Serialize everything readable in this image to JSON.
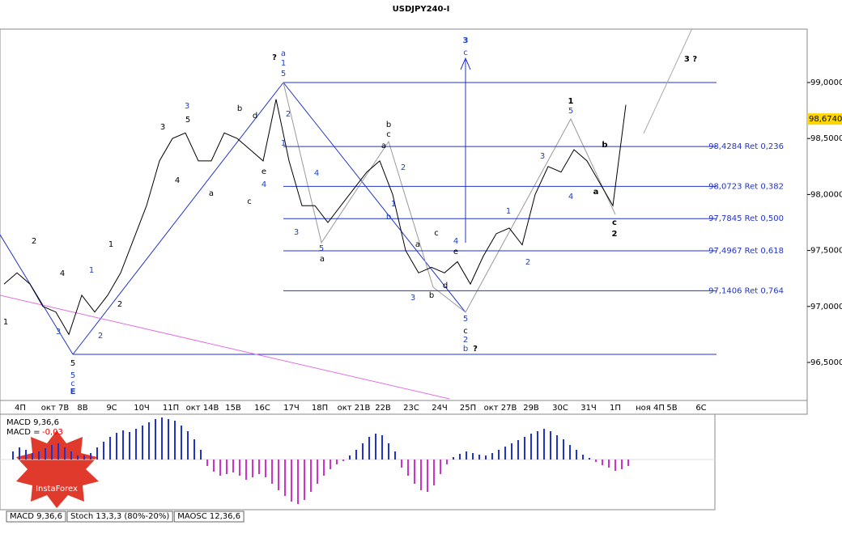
{
  "header": {
    "title": "USDJPY240-I"
  },
  "price_axis": {
    "ticks": [
      {
        "value": 99.0,
        "label": "99,0000"
      },
      {
        "value": 98.5,
        "label": "98,5000"
      },
      {
        "value": 98.0,
        "label": "98,0000"
      },
      {
        "value": 97.5,
        "label": "97,5000"
      },
      {
        "value": 97.0,
        "label": "97,0000"
      },
      {
        "value": 96.5,
        "label": "96,5000"
      }
    ],
    "current": {
      "value": 98.674,
      "label": "98,6740"
    }
  },
  "fib_levels": [
    {
      "value": 98.4284,
      "label": "98,4284 Ret 0,236"
    },
    {
      "value": 98.0723,
      "label": "98,0723 Ret 0,382"
    },
    {
      "value": 97.7845,
      "label": "97,7845 Ret 0,500"
    },
    {
      "value": 97.4967,
      "label": "97,4967 Ret 0,618"
    },
    {
      "value": 97.1406,
      "label": "97,1406 Ret 0,764"
    }
  ],
  "close": [
    97.2,
    97.3,
    97.2,
    97.0,
    96.95,
    96.75,
    97.1,
    96.95,
    97.1,
    97.3,
    97.6,
    97.9,
    98.3,
    98.5,
    98.55,
    98.3,
    98.3,
    98.55,
    98.5,
    98.4,
    98.3,
    98.85,
    98.3,
    97.9,
    97.9,
    97.75,
    97.9,
    98.05,
    98.2,
    98.3,
    98.0,
    97.5,
    97.3,
    97.35,
    97.3,
    97.4,
    97.2,
    97.45,
    97.65,
    97.7,
    97.55,
    98.0,
    98.25,
    98.2,
    98.4,
    98.3,
    98.1,
    97.9,
    98.8
  ],
  "dates": [
    "4П",
    "окт 7В",
    "8В",
    "9С",
    "10Ч",
    "11П",
    "окт 14В",
    "15В",
    "16С",
    "17Ч",
    "18П",
    "окт 21В",
    "22В",
    "23С",
    "24Ч",
    "25П",
    "окт 27В",
    "29В",
    "30С",
    "31Ч",
    "1П",
    "ноя 4П",
    "5В",
    "6С"
  ],
  "waves": [
    {
      "text": "1",
      "color": "#000"
    },
    {
      "text": "2",
      "color": "#000"
    },
    {
      "text": "3",
      "color": "#1c3fc4"
    },
    {
      "text": "4",
      "color": "#000"
    },
    {
      "text": "5",
      "color": "#000"
    },
    {
      "text": "5",
      "color": "#1c3fc4"
    },
    {
      "text": "c",
      "color": "#1c3fc4"
    },
    {
      "text": "E",
      "color": "#1c3fc4"
    },
    {
      "text": "1",
      "color": "#1c3fc4"
    },
    {
      "text": "2",
      "color": "#1c3fc4"
    },
    {
      "text": "1",
      "color": "#000"
    },
    {
      "text": "2",
      "color": "#000"
    },
    {
      "text": "3",
      "color": "#000"
    },
    {
      "text": "3",
      "color": "#1c3fc4"
    },
    {
      "text": "5",
      "color": "#000"
    },
    {
      "text": "4",
      "color": "#000"
    },
    {
      "text": "a",
      "color": "#000"
    },
    {
      "text": "b",
      "color": "#000"
    },
    {
      "text": "c",
      "color": "#000"
    },
    {
      "text": "d",
      "color": "#000"
    },
    {
      "text": "e",
      "color": "#000"
    },
    {
      "text": "4",
      "color": "#1c3fc4"
    },
    {
      "text": "?",
      "color": "#000"
    },
    {
      "text": "a",
      "color": "#1c3fc4"
    },
    {
      "text": "1",
      "color": "#1c3fc4"
    },
    {
      "text": "5",
      "color": "#1c3fc4"
    },
    {
      "text": "2",
      "color": "#1c3fc4"
    },
    {
      "text": "1",
      "color": "#1c3fc4"
    },
    {
      "text": "3",
      "color": "#1c3fc4"
    },
    {
      "text": "4",
      "color": "#1c3fc4"
    },
    {
      "text": "5",
      "color": "#1c3fc4"
    },
    {
      "text": "a",
      "color": "#000"
    },
    {
      "text": "b",
      "color": "#000"
    },
    {
      "text": "c",
      "color": "#000"
    },
    {
      "text": "a",
      "color": "#000"
    },
    {
      "text": "2",
      "color": "#1c3fc4"
    },
    {
      "text": "1",
      "color": "#1c3fc4"
    },
    {
      "text": "b",
      "color": "#1c3fc4"
    },
    {
      "text": "a",
      "color": "#000"
    },
    {
      "text": "c",
      "color": "#000"
    },
    {
      "text": "e",
      "color": "#000"
    },
    {
      "text": "4",
      "color": "#1c3fc4"
    },
    {
      "text": "d",
      "color": "#000"
    },
    {
      "text": "b",
      "color": "#000"
    },
    {
      "text": "3",
      "color": "#1c3fc4"
    },
    {
      "text": "3",
      "color": "#1c3fc4"
    },
    {
      "text": "c",
      "color": "#1c3fc4"
    },
    {
      "text": "5",
      "color": "#1c3fc4"
    },
    {
      "text": "c",
      "color": "#000"
    },
    {
      "text": "2",
      "color": "#1c3fc4"
    },
    {
      "text": "b",
      "color": "#1c3fc4"
    },
    {
      "text": "?",
      "color": "#000"
    },
    {
      "text": "1",
      "color": "#1c3fc4"
    },
    {
      "text": "2",
      "color": "#1c3fc4"
    },
    {
      "text": "3",
      "color": "#1c3fc4"
    },
    {
      "text": "1",
      "color": "#000"
    },
    {
      "text": "5",
      "color": "#1c3fc4"
    },
    {
      "text": "4",
      "color": "#1c3fc4"
    },
    {
      "text": "b",
      "color": "#000"
    },
    {
      "text": "a",
      "color": "#000"
    },
    {
      "text": "c",
      "color": "#000"
    },
    {
      "text": "2",
      "color": "#000"
    },
    {
      "text": "3 ?",
      "color": "#000"
    }
  ],
  "macd": {
    "name": "MACD 9,36,6",
    "value_prefix": "MACD =",
    "value_label": "-0,03",
    "histogram": [
      0.1,
      0.15,
      0.12,
      0.08,
      0.1,
      0.14,
      0.18,
      0.2,
      0.15,
      0.1,
      0.05,
      0.05,
      0.08,
      0.15,
      0.22,
      0.28,
      0.33,
      0.36,
      0.34,
      0.38,
      0.42,
      0.46,
      0.5,
      0.52,
      0.5,
      0.48,
      0.42,
      0.35,
      0.25,
      0.12,
      -0.08,
      -0.15,
      -0.2,
      -0.18,
      -0.16,
      -0.2,
      -0.25,
      -0.22,
      -0.18,
      -0.22,
      -0.3,
      -0.38,
      -0.45,
      -0.52,
      -0.55,
      -0.5,
      -0.4,
      -0.3,
      -0.2,
      -0.12,
      -0.06,
      -0.02,
      0.05,
      0.12,
      0.2,
      0.28,
      0.32,
      0.3,
      0.2,
      0.1,
      -0.1,
      -0.2,
      -0.3,
      -0.38,
      -0.4,
      -0.32,
      -0.18,
      -0.06,
      0.03,
      0.07,
      0.1,
      0.08,
      0.06,
      0.05,
      0.08,
      0.12,
      0.16,
      0.2,
      0.24,
      0.28,
      0.32,
      0.35,
      0.38,
      0.35,
      0.3,
      0.25,
      0.18,
      0.12,
      0.06,
      0.02,
      -0.03,
      -0.07,
      -0.1,
      -0.14,
      -0.12,
      -0.08
    ]
  },
  "tabs": [
    "MACD 9,36,6",
    "Stoch 13,3,3 (80%-20%)",
    "MAOSC 12,36,6"
  ],
  "logo": "InstaForex"
}
